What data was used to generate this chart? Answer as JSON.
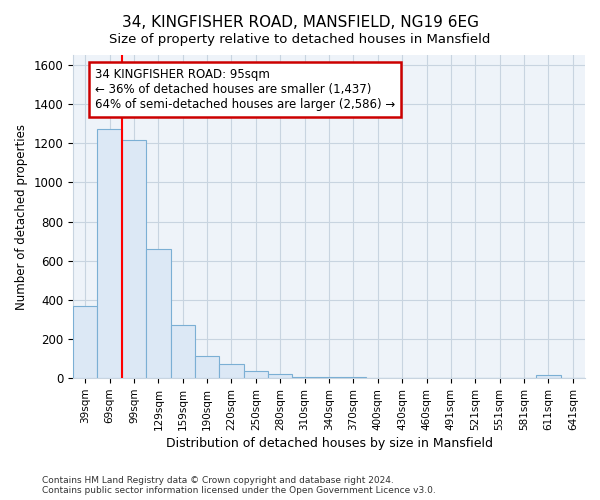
{
  "title": "34, KINGFISHER ROAD, MANSFIELD, NG19 6EG",
  "subtitle": "Size of property relative to detached houses in Mansfield",
  "xlabel": "Distribution of detached houses by size in Mansfield",
  "ylabel": "Number of detached properties",
  "categories": [
    "39sqm",
    "69sqm",
    "99sqm",
    "129sqm",
    "159sqm",
    "190sqm",
    "220sqm",
    "250sqm",
    "280sqm",
    "310sqm",
    "340sqm",
    "370sqm",
    "400sqm",
    "430sqm",
    "460sqm",
    "491sqm",
    "521sqm",
    "551sqm",
    "581sqm",
    "611sqm",
    "641sqm"
  ],
  "values": [
    370,
    1270,
    1215,
    660,
    270,
    115,
    70,
    35,
    20,
    8,
    5,
    4,
    3,
    2,
    1,
    0,
    0,
    0,
    0,
    18,
    0
  ],
  "bar_color": "#dce8f5",
  "bar_edge_color": "#7bafd4",
  "red_line_index": 2,
  "annotation_title": "34 KINGFISHER ROAD: 95sqm",
  "annotation_line1": "← 36% of detached houses are smaller (1,437)",
  "annotation_line2": "64% of semi-detached houses are larger (2,586) →",
  "annotation_box_facecolor": "#ffffff",
  "annotation_box_edgecolor": "#cc0000",
  "ylim": [
    0,
    1650
  ],
  "yticks": [
    0,
    200,
    400,
    600,
    800,
    1000,
    1200,
    1400,
    1600
  ],
  "figure_background": "#ffffff",
  "plot_background": "#eef3f9",
  "grid_color": "#c8d4e0",
  "footer_line1": "Contains HM Land Registry data © Crown copyright and database right 2024.",
  "footer_line2": "Contains public sector information licensed under the Open Government Licence v3.0."
}
